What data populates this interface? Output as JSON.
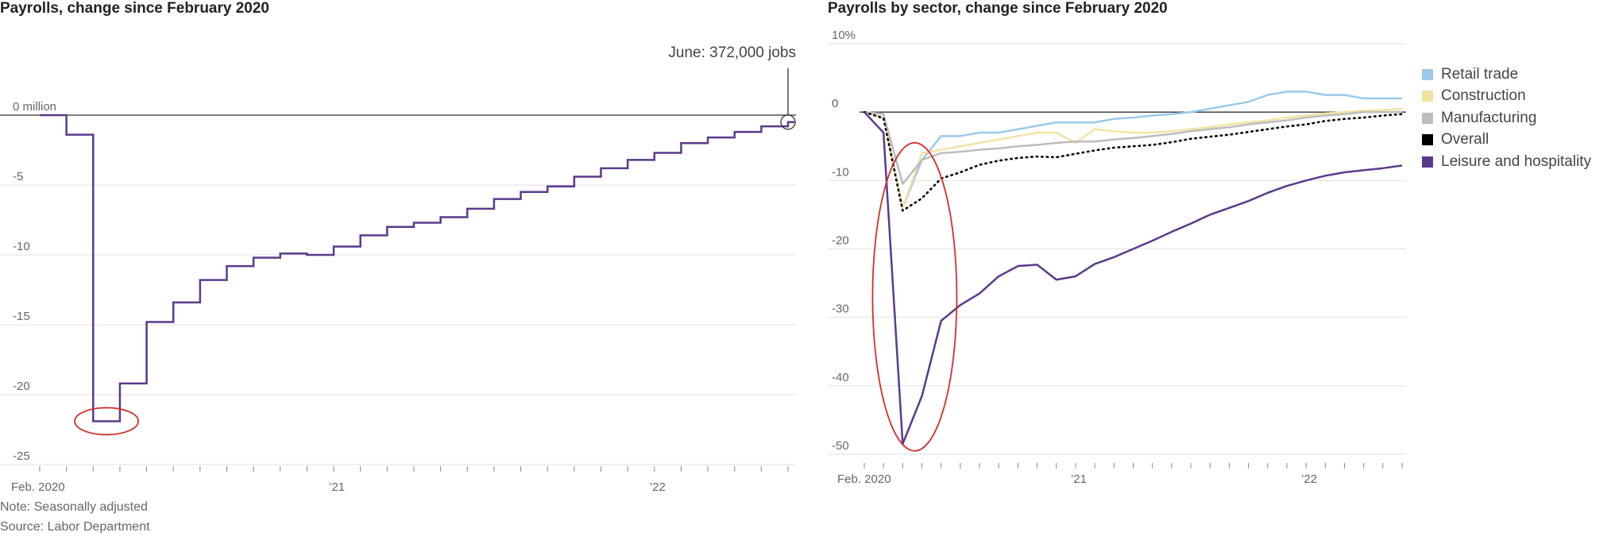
{
  "footer": {
    "note": "Note: Seasonally adjusted",
    "source": "Source: Labor Department"
  },
  "chart_data": [
    {
      "type": "line",
      "title": "Payrolls, change since February 2020",
      "step": true,
      "unit": "million",
      "x": [
        "2020-02",
        "2020-03",
        "2020-04",
        "2020-05",
        "2020-06",
        "2020-07",
        "2020-08",
        "2020-09",
        "2020-10",
        "2020-11",
        "2020-12",
        "2021-01",
        "2021-02",
        "2021-03",
        "2021-04",
        "2021-05",
        "2021-06",
        "2021-07",
        "2021-08",
        "2021-09",
        "2021-10",
        "2021-11",
        "2021-12",
        "2022-01",
        "2022-02",
        "2022-03",
        "2022-04",
        "2022-05",
        "2022-06"
      ],
      "series": [
        {
          "values": [
            0,
            -1.4,
            -21.9,
            -19.2,
            -14.8,
            -13.4,
            -11.8,
            -10.8,
            -10.2,
            -9.9,
            -10.0,
            -9.4,
            -8.6,
            -8.0,
            -7.7,
            -7.3,
            -6.7,
            -6.0,
            -5.5,
            -5.1,
            -4.4,
            -3.8,
            -3.2,
            -2.7,
            -2.0,
            -1.6,
            -1.2,
            -0.8,
            -0.5
          ]
        }
      ],
      "ylim": [
        -25,
        0
      ],
      "y_ticks": [
        {
          "value": 0,
          "label": "0 million"
        },
        {
          "value": -5,
          "label": "-5"
        },
        {
          "value": -10,
          "label": "-10"
        },
        {
          "value": -15,
          "label": "-15"
        },
        {
          "value": -20,
          "label": "-20"
        },
        {
          "value": -25,
          "label": "-25"
        }
      ],
      "x_tick_labels": [
        {
          "x": "2020-02",
          "label": "Feb. 2020"
        },
        {
          "x": "2021-01",
          "label": "’21"
        },
        {
          "x": "2022-01",
          "label": "’22"
        }
      ],
      "annotations": [
        {
          "x": "2022-06",
          "text": "June: 372,000 jobs"
        }
      ],
      "highlight_ellipse_x": [
        "2020-04",
        "2020-05"
      ],
      "grid": true,
      "colors": {
        "line": "#5b3a8e",
        "zero_line": "#333333",
        "grid": "#e2e2e2",
        "highlight": "#d0312d"
      }
    },
    {
      "type": "line",
      "title": "Payrolls by sector, change since February 2020",
      "unit": "%",
      "x": [
        "2020-02",
        "2020-03",
        "2020-04",
        "2020-05",
        "2020-06",
        "2020-07",
        "2020-08",
        "2020-09",
        "2020-10",
        "2020-11",
        "2020-12",
        "2021-01",
        "2021-02",
        "2021-03",
        "2021-04",
        "2021-05",
        "2021-06",
        "2021-07",
        "2021-08",
        "2021-09",
        "2021-10",
        "2021-11",
        "2021-12",
        "2022-01",
        "2022-02",
        "2022-03",
        "2022-04",
        "2022-05",
        "2022-06"
      ],
      "series": [
        {
          "name": "Retail trade",
          "color": "#9cc9ea",
          "style": "solid",
          "values": [
            0,
            -0.3,
            -14,
            -7,
            -3.5,
            -3.5,
            -3,
            -3,
            -2.5,
            -2,
            -1.5,
            -1.5,
            -1.5,
            -1,
            -0.8,
            -0.5,
            -0.3,
            0,
            0.5,
            1,
            1.5,
            2.5,
            3,
            3,
            2.5,
            2.5,
            2,
            2,
            2
          ]
        },
        {
          "name": "Construction",
          "color": "#f2e3a3",
          "style": "solid",
          "values": [
            0,
            -0.8,
            -14,
            -6,
            -5.5,
            -5,
            -4.5,
            -4,
            -3.5,
            -3,
            -3,
            -4.5,
            -2.5,
            -2.8,
            -3,
            -3,
            -2.8,
            -2.5,
            -2.2,
            -1.8,
            -1.5,
            -1.2,
            -0.8,
            -0.5,
            -0.2,
            0,
            0.2,
            0.3,
            0.5
          ]
        },
        {
          "name": "Manufacturing",
          "color": "#bdbdbd",
          "style": "solid",
          "values": [
            0,
            -0.3,
            -10.5,
            -7,
            -6,
            -5.8,
            -5.5,
            -5.3,
            -5,
            -4.8,
            -4.5,
            -4.3,
            -4.3,
            -4,
            -3.8,
            -3.5,
            -3.2,
            -2.8,
            -2.5,
            -2.2,
            -1.8,
            -1.5,
            -1.2,
            -0.8,
            -0.5,
            -0.3,
            0,
            0,
            0
          ]
        },
        {
          "name": "Overall",
          "color": "#000000",
          "style": "dotted",
          "values": [
            0,
            -0.9,
            -14.4,
            -12.6,
            -9.7,
            -8.8,
            -7.7,
            -7.1,
            -6.7,
            -6.5,
            -6.6,
            -6.1,
            -5.6,
            -5.2,
            -5.0,
            -4.8,
            -4.4,
            -3.9,
            -3.6,
            -3.3,
            -2.9,
            -2.5,
            -2.1,
            -1.8,
            -1.3,
            -1.0,
            -0.8,
            -0.5,
            -0.3
          ]
        },
        {
          "name": "Leisure and hospitality",
          "color": "#5b3a8e",
          "style": "solid",
          "values": [
            0,
            -3,
            -48.5,
            -41.5,
            -30.5,
            -28.2,
            -26.5,
            -24,
            -22.5,
            -22.3,
            -24.5,
            -24,
            -22.2,
            -21.2,
            -20,
            -18.8,
            -17.5,
            -16.3,
            -15,
            -14,
            -13,
            -11.8,
            -10.8,
            -10,
            -9.3,
            -8.8,
            -8.5,
            -8.2,
            -7.8
          ]
        }
      ],
      "ylim": [
        -50,
        10
      ],
      "y_ticks": [
        {
          "value": 10,
          "label": "10%"
        },
        {
          "value": 0,
          "label": "0"
        },
        {
          "value": -10,
          "label": "-10"
        },
        {
          "value": -20,
          "label": "-20"
        },
        {
          "value": -30,
          "label": "-30"
        },
        {
          "value": -40,
          "label": "-40"
        },
        {
          "value": -50,
          "label": "-50"
        }
      ],
      "x_tick_labels": [
        {
          "x": "2020-02",
          "label": "Feb. 2020"
        },
        {
          "x": "2021-01",
          "label": "’21"
        },
        {
          "x": "2022-01",
          "label": "’22"
        }
      ],
      "highlight_ellipse_x": [
        "2020-03",
        "2020-06"
      ],
      "legend_position": "right",
      "grid": true,
      "colors": {
        "zero_line": "#333333",
        "grid": "#e2e2e2",
        "highlight": "#d0312d"
      }
    }
  ]
}
